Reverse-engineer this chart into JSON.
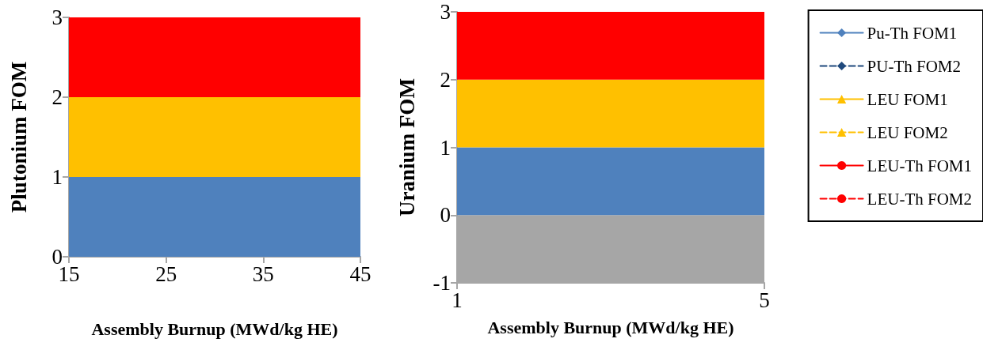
{
  "chart_data": [
    {
      "type": "line",
      "ylabel": "Plutonium FOM",
      "xlabel": "Assembly Burnup (MWd/kg HE)",
      "xlim": [
        15,
        45
      ],
      "xticks": [
        15,
        25,
        35,
        45
      ],
      "ylim": [
        0,
        3
      ],
      "yticks": [
        0,
        1,
        2,
        3
      ],
      "legend": false,
      "bands": [
        {
          "axis": "y",
          "from": 0,
          "to": 1,
          "color": "#4f81bd"
        },
        {
          "axis": "y",
          "from": 1,
          "to": 2,
          "color": "#ffc000"
        },
        {
          "axis": "y",
          "from": 2,
          "to": 3,
          "color": "#ff0000"
        }
      ]
    },
    {
      "type": "line",
      "ylabel": "Uranium FOM",
      "xlabel": "Assembly Burnup (MWd/kg HE)",
      "categories": [
        "1",
        "5"
      ],
      "ylim": [
        -1,
        3
      ],
      "yticks": [
        -1,
        0,
        1,
        2,
        3
      ],
      "legend": "right",
      "bands": [
        {
          "axis": "y",
          "from": -1,
          "to": 0,
          "color": "#a6a6a6"
        },
        {
          "axis": "y",
          "from": 0,
          "to": 1,
          "color": "#4f81bd"
        },
        {
          "axis": "y",
          "from": 1,
          "to": 2,
          "color": "#ffc000"
        },
        {
          "axis": "y",
          "from": 2,
          "to": 3,
          "color": "#ff0000"
        }
      ],
      "series": [
        {
          "name": "Pu-Th FOM1",
          "color": "#4f81bd",
          "marker": "diamond",
          "line_style": "solid",
          "values": [
            null,
            null
          ]
        },
        {
          "name": "PU-Th FOM2",
          "color": "#1f497d",
          "marker": "diamond",
          "line_style": "dashed",
          "values": [
            null,
            null
          ]
        },
        {
          "name": "LEU FOM1",
          "color": "#ffc000",
          "marker": "triangle",
          "line_style": "solid",
          "values": [
            null,
            null
          ]
        },
        {
          "name": "LEU FOM2",
          "color": "#ffc000",
          "marker": "triangle",
          "line_style": "dashed",
          "values": [
            null,
            null
          ]
        },
        {
          "name": "LEU-Th FOM1",
          "color": "#ff0000",
          "marker": "circle",
          "line_style": "solid",
          "values": [
            null,
            null
          ]
        },
        {
          "name": "LEU-Th FOM2",
          "color": "#ff0000",
          "marker": "circle",
          "line_style": "dashed",
          "values": [
            null,
            null
          ]
        }
      ]
    }
  ]
}
